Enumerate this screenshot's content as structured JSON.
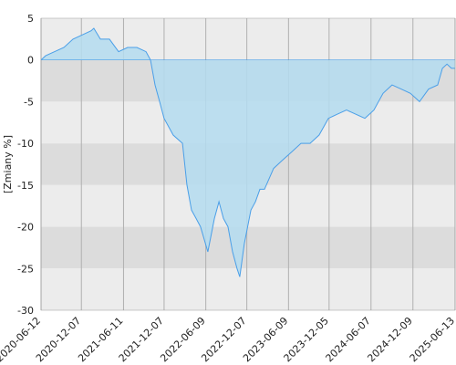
{
  "chart_data": {
    "type": "area",
    "ylabel": "[Zmiany %]",
    "x": [
      "2020-06-12",
      "2020-07-02",
      "2020-08-11",
      "2020-09-21",
      "2020-10-31",
      "2020-12-10",
      "2021-01-19",
      "2021-01-31",
      "2021-03-01",
      "2021-04-10",
      "2021-05-20",
      "2021-06-29",
      "2021-08-09",
      "2021-09-18",
      "2021-10-08",
      "2021-10-28",
      "2021-11-17",
      "2021-12-07",
      "2021-12-27",
      "2022-01-16",
      "2022-02-26",
      "2022-03-18",
      "2022-04-07",
      "2022-04-27",
      "2022-05-17",
      "2022-06-18",
      "2022-07-17",
      "2022-08-06",
      "2022-08-26",
      "2022-09-15",
      "2022-10-05",
      "2022-10-25",
      "2022-11-06",
      "2022-11-26",
      "2022-12-25",
      "2023-01-14",
      "2023-02-03",
      "2023-02-23",
      "2023-04-04",
      "2023-05-14",
      "2023-06-24",
      "2023-08-03",
      "2023-09-12",
      "2023-10-22",
      "2023-12-02",
      "2024-01-11",
      "2024-02-20",
      "2024-03-31",
      "2024-05-11",
      "2024-06-20",
      "2024-07-30",
      "2024-09-08",
      "2024-10-19",
      "2024-11-28",
      "2025-01-07",
      "2025-02-16",
      "2025-03-28",
      "2025-04-18",
      "2025-05-08",
      "2025-05-28",
      "2025-06-13"
    ],
    "series": [
      {
        "color": "#4a9fe8",
        "values": [
          0,
          0.5,
          1,
          1.5,
          2.5,
          3,
          3.5,
          3.8,
          2.5,
          2.5,
          1,
          1.5,
          1.5,
          1,
          0,
          -3,
          -5,
          -7,
          -8,
          -9,
          -10,
          -15,
          -18,
          -19,
          -20,
          -23,
          -19,
          -17,
          -19,
          -20,
          -23,
          -25,
          -26,
          -22,
          -18,
          -17,
          -15.5,
          -15.5,
          -13,
          -12,
          -11,
          -10,
          -10,
          -9,
          -7,
          -6.5,
          -6,
          -6.5,
          -7,
          -6,
          -4,
          -3,
          -3.5,
          -4,
          -5,
          -3.5,
          -3,
          -1,
          -0.5,
          -1,
          -1
        ]
      }
    ],
    "fill_color": "#b4dcf0",
    "xlim": [
      "2020-06-12",
      "2025-06-13"
    ],
    "xticks": [
      "2020-06-12",
      "2020-12-07",
      "2021-06-11",
      "2021-12-07",
      "2022-06-09",
      "2022-12-07",
      "2023-06-09",
      "2023-12-05",
      "2024-06-07",
      "2024-12-09",
      "2025-06-13"
    ],
    "ylim": [
      -30,
      5
    ],
    "yticks": [
      5,
      0,
      -5,
      -10,
      -15,
      -20,
      -25,
      -30
    ],
    "band_colors": [
      "#ececec",
      "#dcdcdc"
    ],
    "grid": true
  }
}
